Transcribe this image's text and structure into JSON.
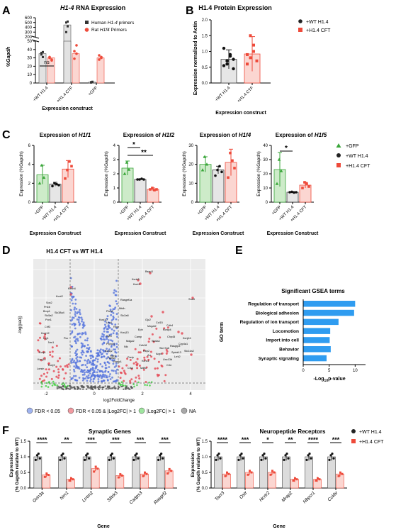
{
  "colors": {
    "gray": "#bdbdbd",
    "red": "#ee4a3a",
    "redFill": "#fbd6d1",
    "green": "#3aa63a",
    "greenFill": "#cdebc9",
    "blue": "#2f9cf0",
    "volcanoBlue": "#5574dd",
    "volcanoGreen": "#3ecf3e",
    "volcanoRed": "#e54551",
    "volcanoGray": "#555555"
  },
  "labels": {
    "A": "A",
    "B": "B",
    "C": "C",
    "D": "D",
    "E": "E",
    "F": "F"
  },
  "panelA": {
    "title_gene": "H1-4",
    "title_rest": " RNA Expression",
    "ylabel": "%Gapdh",
    "xlabel": "Expression construct",
    "ns": "ns",
    "legend": [
      {
        "name": "Human ",
        "gene": "H1-4",
        "suffix": " primers",
        "marker": "square",
        "color": "#333333"
      },
      {
        "name": "Rat ",
        "gene": "H1f4",
        "suffix": " Primers",
        "marker": "circle",
        "color": "#ee4a3a"
      }
    ],
    "upper_ticks": [
      "600",
      "500",
      "400",
      "300",
      "200"
    ],
    "lower_ticks": [
      "50",
      "40",
      "30",
      "20",
      "10",
      "0"
    ],
    "categories": [
      "+WT H1.4",
      "+H1.4 CTF",
      "+GFP"
    ]
  },
  "panelB": {
    "title": "H1.4 Protein Expression",
    "ylabel": "Expression normalized to Actin",
    "xlabel": "Expression construct",
    "yticks": [
      "0.0",
      "0.5",
      "1.0",
      "1.5",
      "2.0"
    ],
    "categories": [
      "+WT H1.4",
      "+H1.4 CTF"
    ],
    "legend": [
      "+WT H1.4",
      "+H1.4 CFT"
    ]
  },
  "panelC": {
    "xlabel": "Expression Construct",
    "ylabel": "Expression (%Gapdh)",
    "categories": [
      "+GFP",
      "+WT H1.4",
      "+H1.4 CFT"
    ],
    "titles": [
      {
        "pre": "Expression of ",
        "gene": "H1f1"
      },
      {
        "pre": "Expression of ",
        "gene": "H1f2"
      },
      {
        "pre": "Expression of ",
        "gene": "H1f4"
      },
      {
        "pre": "Expression of ",
        "gene": "H1f5"
      }
    ],
    "yticks": [
      [
        "0",
        "2",
        "4",
        "6"
      ],
      [
        "0",
        "1",
        "2",
        "3",
        "4"
      ],
      [
        "0",
        "10",
        "20",
        "30"
      ],
      [
        "0",
        "10",
        "20",
        "30",
        "40"
      ]
    ],
    "star1": "*",
    "star2": "**",
    "star3": "*",
    "legend": [
      "+GFP",
      "+WT H1.4",
      "+H1.4 CFT"
    ]
  },
  "panelD": {
    "title": "H1.4 CFT vs WT H1.4",
    "ylabel": "-log(padj)",
    "xlabel": "log2FoldChange",
    "xticks": [
      "-2",
      "0",
      "2",
      "4"
    ],
    "legend": [
      "FDR < 0.05",
      "FDR < 0.05 & |Log2FC| > 1",
      "|Log2FC| > 1",
      "NA"
    ],
    "genes": [
      "Bsap3",
      "Kcnk3",
      "Kcnt1",
      "Sna3",
      "Gjc2",
      "Mogat2",
      "Eph",
      "Camp",
      "Mdga2",
      "Kcnip4",
      "Chp45",
      "Rasgrp3",
      "Cdh4",
      "Syt3",
      "Ptpn14",
      "Kcnq2",
      "Fgfr3",
      "Hoxa3",
      "Rasip1",
      "Kcnh4",
      "Kcnt2",
      "Sox2",
      "Prtcb",
      "Bmp1",
      "Slc38a4",
      "Slc5a2",
      "Pon1",
      "Crlf3",
      "Kcnj12",
      "Lrg1",
      "Nrn1",
      "Kcnj4",
      "Lorsin",
      "Kcnj3",
      "Pcc",
      "Kcnj14",
      "Crkk",
      "Mdfic",
      "Crhr",
      "Unc13d",
      "Lrrk2",
      "Spink13",
      "Slc14a2",
      "Cyp4a1",
      "Kcnj16",
      "Rbp2",
      "Arr",
      "Prelp",
      "Slc17a6",
      "Aqp4",
      "Kcns1",
      "Cdh18",
      "Nlk",
      "Slc6a4",
      "Ccl15",
      "Kcnj13",
      "Slc2a8",
      "Rbpr",
      "Lox1",
      "Mtdh",
      "Rasgef1a",
      "Ptch2",
      "Kcnj10"
    ]
  },
  "panelE": {
    "title": "Significant GSEA terms",
    "ylabel": "GO term",
    "xlabel_pre": "-Log",
    "xlabel_sub": "10",
    "xlabel_post": "p-value",
    "xticks": [
      "0",
      "5",
      "10"
    ],
    "terms": [
      "Regulation of transport",
      "Biological adhesion",
      "Regulation of ion transport",
      "Locomotion",
      "Import into cell",
      "Behavior",
      "Synaptic signaling"
    ]
  },
  "panelF": {
    "ylabel": "Expression",
    "ylabel2": "(% Gapdh relative to WT)",
    "xlabel": "Gene",
    "legend": [
      "+WT H1.4",
      "+H1.4 CFT"
    ],
    "yticks": [
      "0.0",
      "0.5",
      "1.0",
      "1.5"
    ],
    "synaptic": {
      "title": "Synaptic Genes",
      "genes": [
        "Grin3a",
        "Nrn1",
        "Lrrtm2",
        "Slitrk3",
        "Cadps3",
        "Rasgrf2"
      ],
      "stars": [
        "****",
        "**",
        "***",
        "***",
        "***",
        "***"
      ]
    },
    "neuro": {
      "title": "Neuropeptide Receptors",
      "genes": [
        "Tacr3",
        "Ostr",
        "Hcrtr2",
        "Mrap2",
        "Nbpcr1",
        "Cckbr"
      ],
      "stars": [
        "****",
        "***",
        "*",
        "**",
        "****",
        "***"
      ]
    }
  },
  "chart_data": [
    {
      "type": "bar",
      "panel": "A",
      "categories": [
        "+WT H1.4",
        "+H1.4 CTF",
        "+GFP"
      ],
      "series": [
        {
          "name": "Human H1-4 primers",
          "values": [
            35,
            450,
            1
          ]
        },
        {
          "name": "Rat H1f4 Primers",
          "values": [
            30,
            35,
            30
          ]
        }
      ],
      "ylabel": "%Gapdh",
      "ylim": [
        0,
        600
      ],
      "broken_axis": [
        50,
        200
      ]
    },
    {
      "type": "bar",
      "panel": "B",
      "categories": [
        "+WT H1.4",
        "+H1.4 CTF"
      ],
      "values": [
        0.75,
        0.92
      ],
      "errors": [
        0.3,
        0.55
      ],
      "ylim": [
        0,
        2.0
      ]
    },
    {
      "type": "bar",
      "panel": "C-H1f1",
      "categories": [
        "+GFP",
        "+WT H1.4",
        "+H1.4 CFT"
      ],
      "values": [
        2.9,
        1.9,
        3.5
      ],
      "errors": [
        1.0,
        0.2,
        0.9
      ],
      "ylim": [
        0,
        6
      ]
    },
    {
      "type": "bar",
      "panel": "C-H1f2",
      "categories": [
        "+GFP",
        "+WT H1.4",
        "+H1.4 CFT"
      ],
      "values": [
        2.4,
        1.6,
        0.9
      ],
      "errors": [
        0.5,
        0.05,
        0.1
      ],
      "ylim": [
        0,
        4
      ]
    },
    {
      "type": "bar",
      "panel": "C-H1f4",
      "categories": [
        "+GFP",
        "+WT H1.4",
        "+H1.4 CFT"
      ],
      "values": [
        20,
        17,
        21
      ],
      "errors": [
        4,
        2,
        7
      ],
      "ylim": [
        0,
        30
      ]
    },
    {
      "type": "bar",
      "panel": "C-H1f5",
      "categories": [
        "+GFP",
        "+WT H1.4",
        "+H1.4 CFT"
      ],
      "values": [
        23,
        7,
        12
      ],
      "errors": [
        12,
        0.5,
        2
      ],
      "ylim": [
        0,
        40
      ]
    },
    {
      "type": "bar",
      "panel": "E",
      "categories": [
        "Regulation of transport",
        "Biological adhesion",
        "Regulation of ion transport",
        "Locomotion",
        "Import into cell",
        "Behavior",
        "Synaptic signaling"
      ],
      "values": [
        10,
        9.8,
        6.8,
        5.2,
        5.1,
        5.3,
        4.5
      ],
      "xlim": [
        0,
        12
      ]
    },
    {
      "type": "bar",
      "panel": "F-synaptic",
      "categories": [
        "Grin3a",
        "Nrn1",
        "Lrrtm2",
        "Slitrk3",
        "Cadps3",
        "Rasgrf2"
      ],
      "series": [
        {
          "name": "+WT H1.4",
          "values": [
            1.0,
            1.0,
            1.0,
            1.0,
            1.0,
            1.0
          ]
        },
        {
          "name": "+H1.4 CFT",
          "values": [
            0.42,
            0.28,
            0.62,
            0.4,
            0.45,
            0.55
          ]
        }
      ],
      "ylim": [
        0,
        1.5
      ]
    },
    {
      "type": "bar",
      "panel": "F-neuro",
      "categories": [
        "Tacr3",
        "Ostr",
        "Hcrtr2",
        "Mrap2",
        "Nbpcr1",
        "Cckbr"
      ],
      "series": [
        {
          "name": "+WT H1.4",
          "values": [
            1.0,
            1.0,
            1.0,
            1.0,
            1.0,
            1.0
          ]
        },
        {
          "name": "+H1.4 CFT",
          "values": [
            0.45,
            0.5,
            0.5,
            0.28,
            0.28,
            0.45
          ]
        }
      ],
      "ylim": [
        0,
        1.5
      ]
    }
  ]
}
